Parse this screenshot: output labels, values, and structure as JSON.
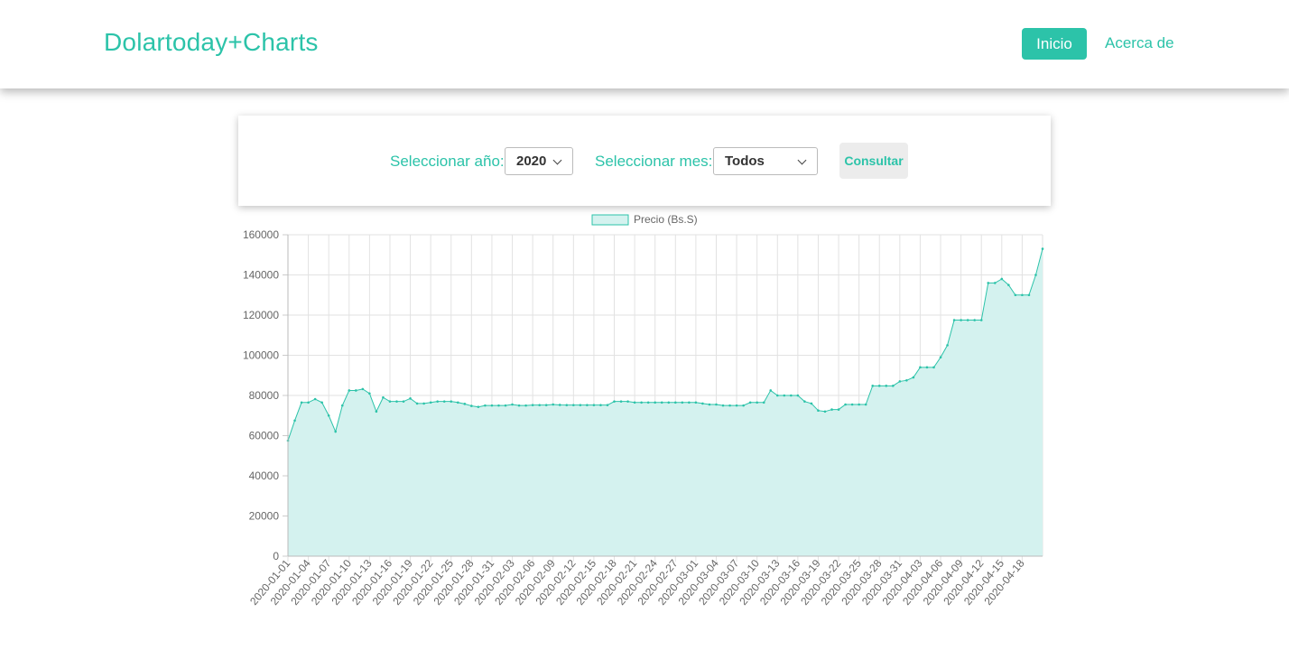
{
  "navbar": {
    "brand": "Dolartoday+Charts",
    "home_label": "Inicio",
    "about_label": "Acerca de"
  },
  "filters": {
    "year_label": "Seleccionar año:",
    "year_value": "2020",
    "month_label": "Seleccionar mes:",
    "month_value": "Todos",
    "submit_label": "Consultar"
  },
  "colors": {
    "accent": "#2cc3a9",
    "line": "#2cc3a9",
    "fill": "#d4f2ef"
  },
  "chart_data": {
    "type": "area",
    "title": "",
    "xlabel": "",
    "ylabel": "",
    "legend": "top-center",
    "grid": true,
    "ylim": [
      0,
      160000
    ],
    "yticks": [
      "0",
      "20000",
      "40000",
      "60000",
      "80000",
      "100000",
      "120000",
      "140000",
      "160000"
    ],
    "xticks": [
      "2020-01-01",
      "2020-01-04",
      "2020-01-07",
      "2020-01-10",
      "2020-01-13",
      "2020-01-16",
      "2020-01-19",
      "2020-01-22",
      "2020-01-25",
      "2020-01-28",
      "2020-01-31",
      "2020-02-03",
      "2020-02-06",
      "2020-02-09",
      "2020-02-12",
      "2020-02-15",
      "2020-02-18",
      "2020-02-21",
      "2020-02-24",
      "2020-02-27",
      "2020-03-01",
      "2020-03-04",
      "2020-03-07",
      "2020-03-10",
      "2020-03-13",
      "2020-03-16",
      "2020-03-19",
      "2020-03-22",
      "2020-03-25",
      "2020-03-28",
      "2020-03-31",
      "2020-04-03",
      "2020-04-06",
      "2020-04-09",
      "2020-04-12",
      "2020-04-15",
      "2020-04-18"
    ],
    "series": [
      {
        "name": "Precio (Bs.S)",
        "values": [
          57500,
          67500,
          76500,
          76500,
          78200,
          76500,
          70000,
          62000,
          75000,
          82500,
          82500,
          83200,
          81000,
          72000,
          79000,
          77000,
          77000,
          77000,
          78500,
          76000,
          76000,
          76500,
          77000,
          77000,
          77000,
          76500,
          75800,
          74800,
          74300,
          75000,
          75000,
          75000,
          75000,
          75500,
          75000,
          75000,
          75200,
          75200,
          75200,
          75500,
          75300,
          75200,
          75200,
          75200,
          75200,
          75200,
          75200,
          75200,
          77000,
          77000,
          77000,
          76500,
          76500,
          76500,
          76500,
          76500,
          76500,
          76500,
          76500,
          76500,
          76500,
          76000,
          75500,
          75500,
          75000,
          75000,
          75000,
          75000,
          76500,
          76500,
          76500,
          82500,
          80000,
          80000,
          80000,
          80000,
          77000,
          76000,
          72500,
          72000,
          73000,
          73000,
          75500,
          75500,
          75500,
          75500,
          84800,
          84800,
          84800,
          84800,
          87000,
          87500,
          89000,
          94000,
          94000,
          94000,
          99000,
          105000,
          117500,
          117500,
          117500,
          117500,
          117500,
          136000,
          136000,
          138000,
          135000,
          130000,
          130000,
          130000,
          140000,
          153000
        ]
      }
    ]
  }
}
